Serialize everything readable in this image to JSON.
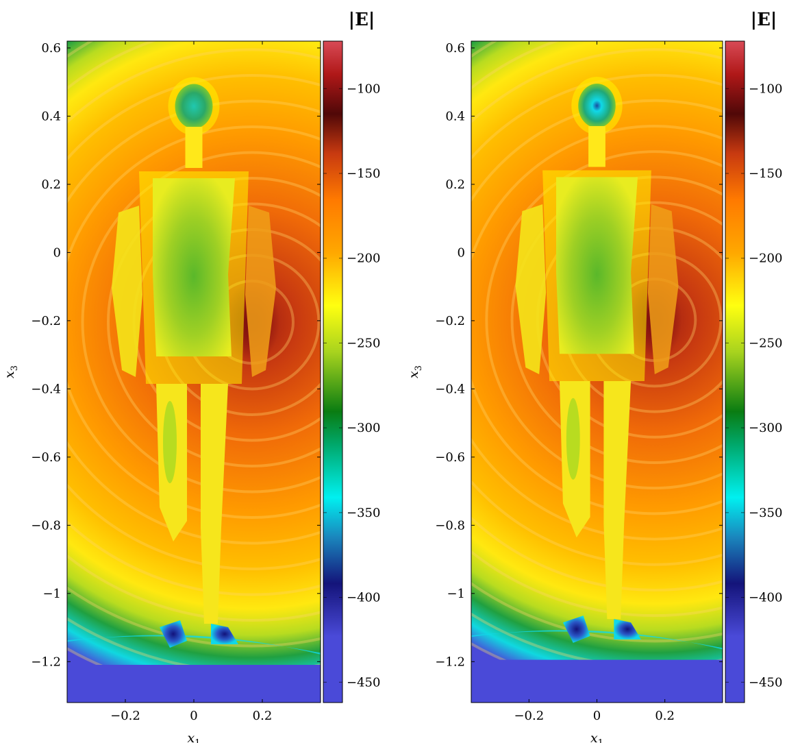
{
  "chart_data": [
    {
      "type": "heatmap",
      "title": "",
      "xlabel": "x",
      "xlabel_sub": "1",
      "ylabel": "x",
      "ylabel_sub": "3",
      "xlim": [
        -0.37,
        0.37
      ],
      "ylim": [
        -1.32,
        0.62
      ],
      "x_ticks": [
        -0.2,
        0,
        0.2
      ],
      "x_tick_labels": [
        "−0.2",
        "0",
        "0.2"
      ],
      "y_ticks": [
        0.6,
        0.4,
        0.2,
        0,
        -0.2,
        -0.4,
        -0.6,
        -0.8,
        -1,
        -1.2
      ],
      "y_tick_labels": [
        "0.6",
        "0.4",
        "0.2",
        "0",
        "−0.2",
        "−0.4",
        "−0.6",
        "−0.8",
        "−1",
        "−1.2"
      ],
      "colorbar": {
        "label": "|E|",
        "range": [
          -462,
          -72
        ],
        "ticks": [
          -100,
          -150,
          -200,
          -250,
          -300,
          -350,
          -400,
          -450
        ],
        "tick_labels": [
          "−100",
          "−150",
          "−200",
          "−250",
          "−300",
          "−350",
          "−400",
          "−450"
        ],
        "colormap": [
          "#4a4ad8",
          "#14147a",
          "#1a86bd",
          "#00f0f0",
          "#00a86b",
          "#0a7c12",
          "#a8d31e",
          "#ffff10",
          "#ffa800",
          "#ff7a00",
          "#c83a10",
          "#500808",
          "#b01818",
          "#d84a56"
        ]
      },
      "field_features": {
        "source_center": [
          0.17,
          -0.2
        ],
        "source_value": -125,
        "body_value": -255,
        "bottom_floor_value": -458,
        "feet_values": [
          -405,
          -410
        ]
      }
    },
    {
      "type": "heatmap",
      "title": "",
      "xlabel": "x",
      "xlabel_sub": "1",
      "ylabel": "x",
      "ylabel_sub": "3",
      "xlim": [
        -0.37,
        0.37
      ],
      "ylim": [
        -1.32,
        0.62
      ],
      "x_ticks": [
        -0.2,
        0,
        0.2
      ],
      "x_tick_labels": [
        "−0.2",
        "0",
        "0.2"
      ],
      "y_ticks": [
        0.6,
        0.4,
        0.2,
        0,
        -0.2,
        -0.4,
        -0.6,
        -0.8,
        -1,
        -1.2
      ],
      "y_tick_labels": [
        "0.6",
        "0.4",
        "0.2",
        "0",
        "−0.2",
        "−0.4",
        "−0.6",
        "−0.8",
        "−1",
        "−1.2"
      ],
      "colorbar": {
        "label": "|E|",
        "range": [
          -462,
          -72
        ],
        "ticks": [
          -100,
          -150,
          -200,
          -250,
          -300,
          -350,
          -400,
          -450
        ],
        "tick_labels": [
          "−100",
          "−150",
          "−200",
          "−250",
          "−300",
          "−350",
          "−400",
          "−450"
        ],
        "colormap": [
          "#4a4ad8",
          "#14147a",
          "#1a86bd",
          "#00f0f0",
          "#00a86b",
          "#0a7c12",
          "#a8d31e",
          "#ffff10",
          "#ffa800",
          "#ff7a00",
          "#c83a10",
          "#500808",
          "#b01818",
          "#d84a56"
        ]
      },
      "field_features": {
        "source_center": [
          0.17,
          -0.2
        ],
        "source_value": -125,
        "body_value": -258,
        "bottom_floor_value": -458,
        "feet_values": [
          -410,
          -415
        ]
      }
    }
  ]
}
